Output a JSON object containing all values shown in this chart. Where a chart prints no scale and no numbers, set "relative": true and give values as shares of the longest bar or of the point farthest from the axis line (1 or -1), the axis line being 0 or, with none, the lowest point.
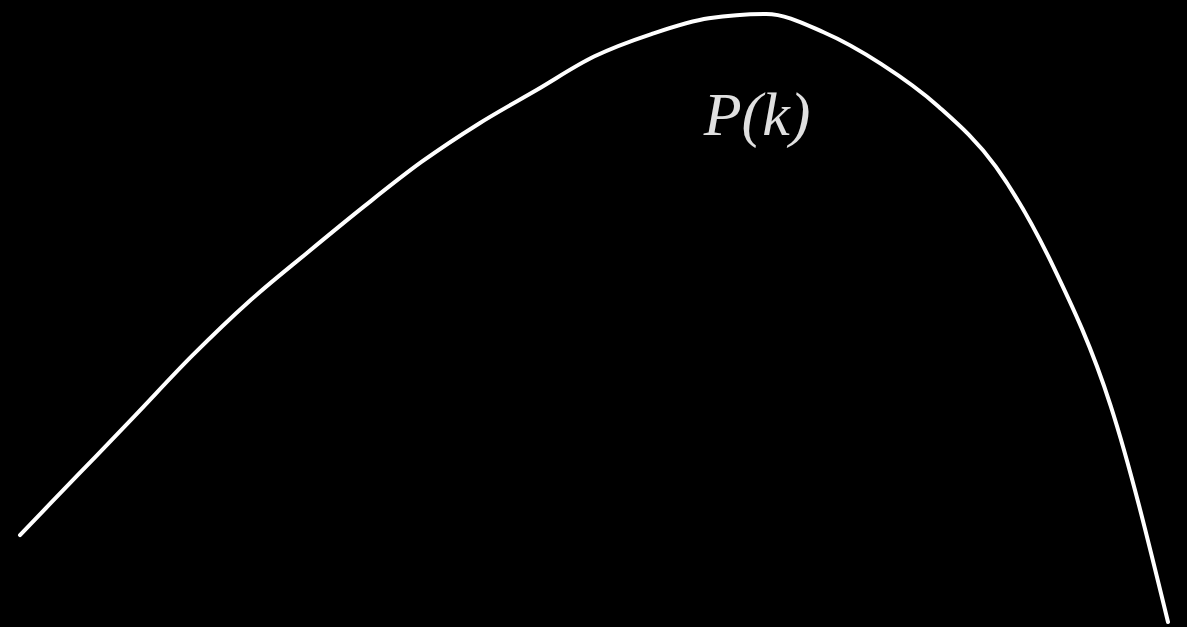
{
  "chart_data": {
    "type": "line",
    "relative": true,
    "color": "#ffffff",
    "categories": [
      null,
      null,
      null,
      null,
      null,
      null,
      null,
      null,
      null,
      null,
      null,
      null,
      null,
      null,
      null,
      null,
      null,
      null,
      null,
      null,
      null
    ],
    "values": [
      0.143,
      0.241,
      0.339,
      0.438,
      0.528,
      0.607,
      0.684,
      0.757,
      0.82,
      0.875,
      0.93,
      0.967,
      0.993,
      1.0,
      0.97,
      0.918,
      0.848,
      0.749,
      0.585,
      0.356,
      0
    ],
    "annotations": [
      "P(k)"
    ]
  }
}
